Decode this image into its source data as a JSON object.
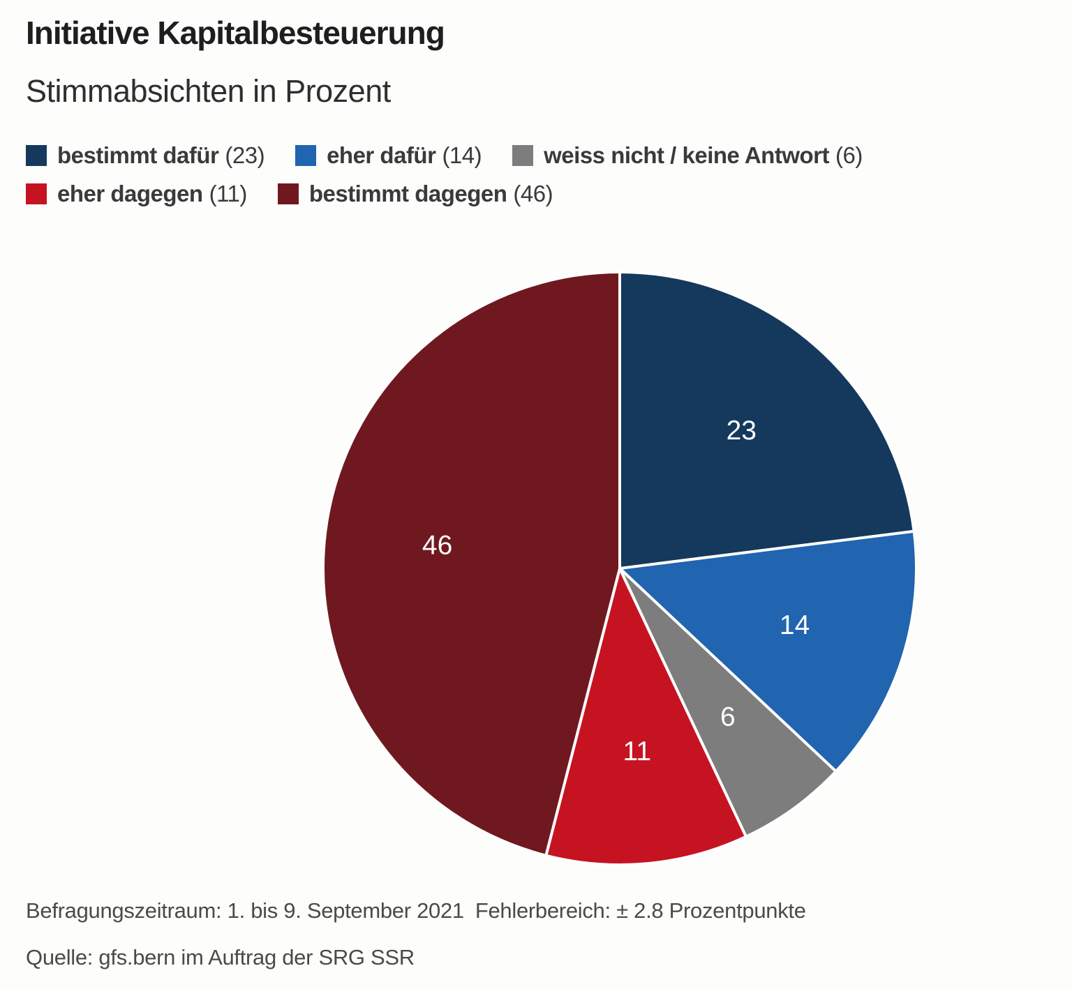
{
  "header": {
    "title": "Initiative Kapitalbesteuerung",
    "subtitle": "Stimmabsichten in Prozent"
  },
  "chart_data": {
    "type": "pie",
    "title": "Initiative Kapitalbesteuerung",
    "subtitle": "Stimmabsichten in Prozent",
    "values_are": "percent",
    "start_angle_deg": 0,
    "direction": "clockwise",
    "legend_position": "top",
    "slice_label_color": "#ffffff",
    "slice_divider_color": "#ffffff",
    "slices": [
      {
        "label": "bestimmt dafür",
        "value": 23,
        "color": "#14395d"
      },
      {
        "label": "eher dafür",
        "value": 14,
        "color": "#2164af"
      },
      {
        "label": "weiss nicht / keine Antwort",
        "value": 6,
        "color": "#7d7d7d"
      },
      {
        "label": "eher dagegen",
        "value": 11,
        "color": "#c61322"
      },
      {
        "label": "bestimmt dagegen",
        "value": 46,
        "color": "#701820"
      }
    ]
  },
  "footer": {
    "survey_period": "Befragungszeitraum: 1. bis 9. September 2021",
    "error_margin": "Fehlerbereich: ± 2.8 Prozentpunkte",
    "source": "Quelle: gfs.bern im Auftrag der SRG SSR"
  }
}
